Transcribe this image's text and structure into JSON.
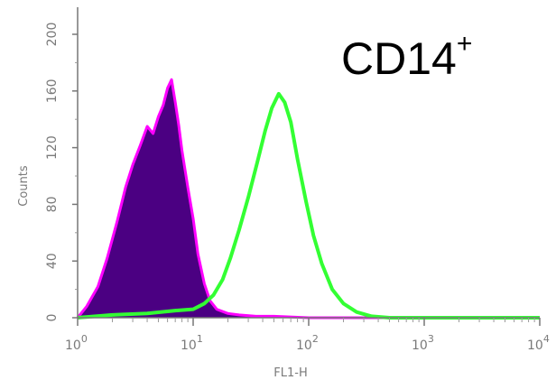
{
  "chart_data": {
    "type": "area",
    "x_scale": "log",
    "xlabel": "FL1-H",
    "ylabel": "Counts",
    "xlim": [
      1,
      10000
    ],
    "ylim": [
      0,
      200
    ],
    "x_ticks": [
      {
        "value": 1,
        "base": "10",
        "exp": "0"
      },
      {
        "value": 10,
        "base": "10",
        "exp": "1"
      },
      {
        "value": 100,
        "base": "10",
        "exp": "2"
      },
      {
        "value": 1000,
        "base": "10",
        "exp": "3"
      },
      {
        "value": 10000,
        "base": "10",
        "exp": "4"
      }
    ],
    "y_ticks": [
      {
        "value": 0,
        "label": "0"
      },
      {
        "value": 40,
        "label": "40"
      },
      {
        "value": 80,
        "label": "80"
      },
      {
        "value": 120,
        "label": "120"
      },
      {
        "value": 160,
        "label": "160"
      },
      {
        "value": 200,
        "label": "200"
      }
    ],
    "annotation": {
      "base": "CD14",
      "sup": "+"
    },
    "series": [
      {
        "color": "#4b0082",
        "outline": "#ff00ff",
        "filled": true,
        "x": [
          1.0,
          1.2,
          1.5,
          1.8,
          2.2,
          2.6,
          3.0,
          3.5,
          4.0,
          4.5,
          5.0,
          5.5,
          6.0,
          6.5,
          7.0,
          7.5,
          8.0,
          9.0,
          10.0,
          11.0,
          12.5,
          14.0,
          16.0,
          20.0,
          25.0,
          35.0,
          50.0,
          100.0,
          1000.0,
          10000.0
        ],
        "y": [
          0,
          8,
          22,
          42,
          68,
          92,
          108,
          122,
          135,
          130,
          142,
          150,
          162,
          168,
          152,
          136,
          118,
          92,
          70,
          45,
          24,
          12,
          6,
          3,
          2,
          1,
          1,
          0,
          0,
          0
        ]
      },
      {
        "color": "#33ff33",
        "filled": false,
        "x": [
          1.0,
          2.0,
          4.0,
          7.0,
          10.0,
          12.5,
          15.0,
          18.0,
          21.0,
          25.0,
          30.0,
          36.0,
          42.0,
          48.0,
          55.0,
          62.0,
          70.0,
          80.0,
          95.0,
          110.0,
          130.0,
          160.0,
          200.0,
          260.0,
          350.0,
          500.0,
          1000.0,
          10000.0
        ],
        "y": [
          0,
          2,
          3,
          5,
          6,
          10,
          16,
          27,
          42,
          62,
          85,
          110,
          132,
          148,
          158,
          152,
          138,
          112,
          82,
          58,
          38,
          20,
          10,
          4,
          1,
          0,
          0,
          0
        ]
      }
    ]
  }
}
